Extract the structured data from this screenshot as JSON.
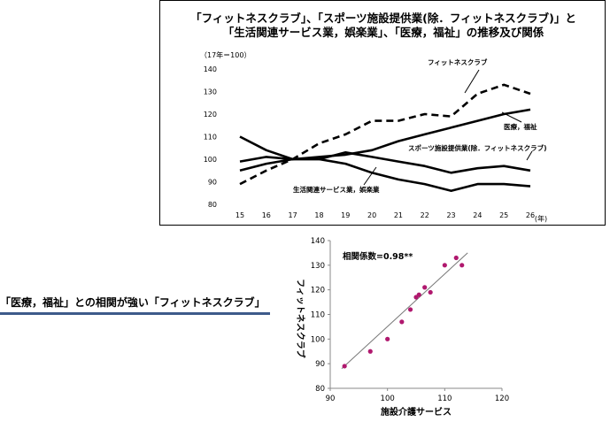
{
  "chart_data": [
    {
      "type": "line",
      "title_line1": "「フィットネスクラブ」、「スポーツ施設提供業(除．フィットネスクラブ)」と",
      "title_line2": "「生活関連サービス業，娯楽業」、「医療，福祉」の推移及び関係",
      "unit_label": "（17年＝100）",
      "xlabel": "(年)",
      "x": [
        15,
        16,
        17,
        18,
        19,
        20,
        21,
        22,
        23,
        24,
        25,
        26
      ],
      "ylim": [
        80,
        140
      ],
      "yticks": [
        80,
        90,
        100,
        110,
        120,
        130,
        140
      ],
      "series": [
        {
          "name": "フィットネスクラブ",
          "style": "dashed",
          "values": [
            89,
            95,
            100,
            107,
            111,
            117,
            117,
            120,
            119,
            129,
            133,
            129
          ]
        },
        {
          "name": "医療，福祉",
          "style": "solid",
          "values": [
            95,
            98,
            100,
            101,
            102,
            104,
            108,
            111,
            114,
            117,
            120,
            122
          ]
        },
        {
          "name": "スポーツ施設提供業(除．フィットネスクラブ)",
          "style": "solid",
          "values": [
            110,
            104,
            100,
            100,
            103,
            101,
            99,
            97,
            94,
            96,
            97,
            95
          ]
        },
        {
          "name": "生活関連サービス業，娯楽業",
          "style": "solid",
          "values": [
            99,
            101,
            100,
            100,
            98,
            94,
            91,
            89,
            86,
            89,
            89,
            88
          ]
        }
      ]
    },
    {
      "type": "scatter",
      "xlabel": "施設介護サービス",
      "ylabel": "フィットネスクラブ",
      "annotation": "相関係数=0.98**",
      "xlim": [
        90,
        120
      ],
      "ylim": [
        80,
        140
      ],
      "xticks": [
        90,
        100,
        110,
        120
      ],
      "yticks": [
        80,
        90,
        100,
        110,
        120,
        130,
        140
      ],
      "point_color": "#b0186e",
      "points": [
        [
          92.5,
          89
        ],
        [
          97,
          95
        ],
        [
          100,
          100
        ],
        [
          102.5,
          107
        ],
        [
          104,
          112
        ],
        [
          105,
          117
        ],
        [
          105.5,
          118
        ],
        [
          106.5,
          121
        ],
        [
          107.5,
          119
        ],
        [
          110,
          130
        ],
        [
          112,
          133
        ],
        [
          113,
          130
        ]
      ],
      "trendline": [
        [
          92,
          88
        ],
        [
          114,
          135
        ]
      ]
    }
  ],
  "caption": "「医療，福祉」との相関が強い「フィットネスクラブ」"
}
